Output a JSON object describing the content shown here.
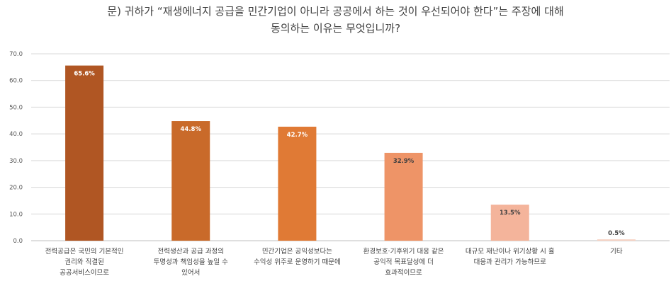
{
  "chart_data": {
    "type": "bar",
    "title_lines": [
      "문) 귀하가 “재생에너지 공급을 민간기업이 아니라 공공에서 하는 것이 우선되어야 한다”는 주장에 대해",
      "동의하는 이유는 무엇입니까?"
    ],
    "categories": [
      [
        "전력공급은 국민의 기본적인",
        "권리와 직결된",
        "공공서비스이므로"
      ],
      [
        "전력생산과 공급 과정의",
        "투명성과 책임성을 높일 수",
        "있어서"
      ],
      [
        "민간기업은 공익성보다는",
        "수익성 위주로 운영하기 때문에"
      ],
      [
        "환경보호·기후위기 대응 같은",
        "공익적 목표달성에 더",
        "효과적이므로"
      ],
      [
        "대규모 재난이나 위기상황 시 휼",
        "대응과 관리가 가능하므로"
      ],
      [
        "기타"
      ]
    ],
    "values": [
      65.6,
      44.8,
      42.7,
      32.9,
      13.5,
      0.5
    ],
    "value_labels": [
      "65.6%",
      "44.8%",
      "42.7%",
      "32.9%",
      "13.5%",
      "0.5%"
    ],
    "ylim": [
      0,
      70
    ],
    "yticks": [
      "0.0",
      "10.0",
      "20.0",
      "30.0",
      "40.0",
      "50.0",
      "60.0",
      "70.0"
    ],
    "grid": true,
    "bar_colors": [
      "#B05623",
      "#C96A2A",
      "#E07A35",
      "#EE9467",
      "#F4B49B",
      "#F8D2C2"
    ],
    "label_colors": [
      "#ffffff",
      "#ffffff",
      "#ffffff",
      "#404040",
      "#404040",
      "#404040"
    ],
    "label_inside": [
      true,
      true,
      true,
      true,
      true,
      false
    ]
  }
}
